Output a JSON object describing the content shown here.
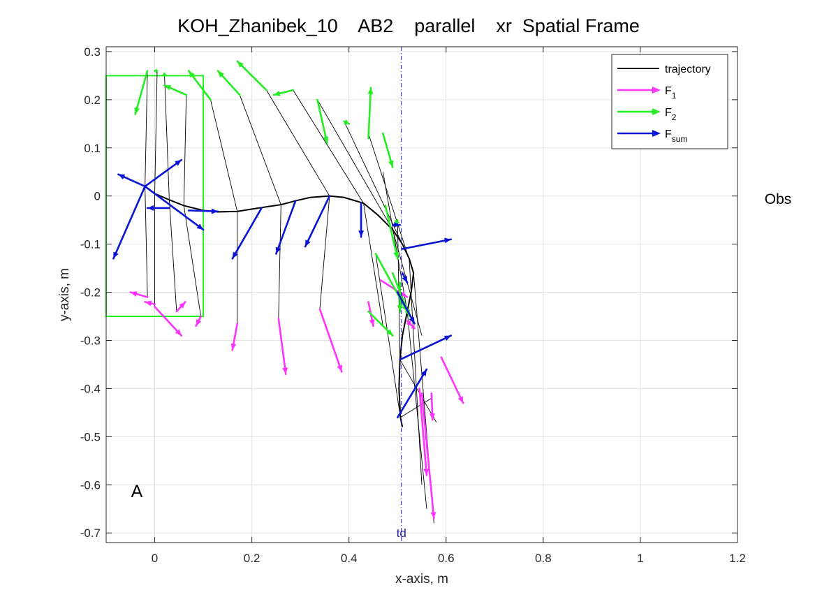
{
  "chart_data": {
    "type": "line",
    "title": "KOH_Zhanibek_10    AB2    parallel    xr  Spatial Frame",
    "xlabel": "x-axis, m",
    "ylabel": "y-axis, m",
    "xlim": [
      -0.1,
      1.2
    ],
    "ylim": [
      -0.72,
      0.31
    ],
    "xticks": [
      0,
      0.2,
      0.4,
      0.6,
      0.8,
      1,
      1.2
    ],
    "xtick_labels": [
      "0",
      "0.2",
      "0.4",
      "0.6",
      "0.8",
      "1",
      "1.2"
    ],
    "yticks": [
      0.3,
      0.2,
      0.1,
      0,
      -0.1,
      -0.2,
      -0.3,
      -0.4,
      -0.5,
      -0.6,
      -0.7
    ],
    "ytick_labels": [
      "0.3",
      "0.2",
      "0.1",
      "0",
      "-0.1",
      "-0.2",
      "-0.3",
      "-0.4",
      "-0.5",
      "-0.6",
      "-0.7"
    ],
    "grid": true,
    "legend_position": "top-right",
    "legend": [
      {
        "label": "trajectory",
        "sub": "",
        "color": "#000000",
        "style": "line"
      },
      {
        "label": "F",
        "sub": "1",
        "color": "#ff33ff",
        "style": "arrow"
      },
      {
        "label": "F",
        "sub": "2",
        "color": "#22ee22",
        "style": "arrow"
      },
      {
        "label": "F",
        "sub": "sum",
        "color": "#0a14d6",
        "style": "arrow"
      }
    ],
    "colors": {
      "trajectory": "#000000",
      "f1": "#ff33ff",
      "f2": "#22ee22",
      "fsum": "#0a14d6",
      "box": "#22ee22",
      "td": "#1a1aa8"
    },
    "box": {
      "x": [
        -0.1,
        0.1
      ],
      "y": [
        -0.25,
        0.25
      ]
    },
    "td_line": {
      "x": 0.508,
      "label": "td"
    },
    "annotations": {
      "corner": "A",
      "side": "Obs"
    },
    "trajectory": [
      [
        -0.02,
        0.02
      ],
      [
        0.0,
        0.005
      ],
      [
        0.03,
        -0.008
      ],
      [
        0.06,
        -0.02
      ],
      [
        0.1,
        -0.03
      ],
      [
        0.13,
        -0.033
      ],
      [
        0.17,
        -0.032
      ],
      [
        0.22,
        -0.024
      ],
      [
        0.26,
        -0.018
      ],
      [
        0.29,
        -0.01
      ],
      [
        0.32,
        -0.003
      ],
      [
        0.36,
        0.0
      ],
      [
        0.39,
        -0.003
      ],
      [
        0.43,
        -0.015
      ],
      [
        0.46,
        -0.04
      ],
      [
        0.49,
        -0.07
      ],
      [
        0.51,
        -0.1
      ],
      [
        0.524,
        -0.13
      ],
      [
        0.533,
        -0.16
      ],
      [
        0.528,
        -0.2
      ],
      [
        0.52,
        -0.24
      ],
      [
        0.51,
        -0.29
      ],
      [
        0.505,
        -0.34
      ],
      [
        0.503,
        -0.4
      ],
      [
        0.506,
        -0.46
      ],
      [
        0.51,
        -0.48
      ]
    ],
    "links": [
      {
        "p": [
          -0.02,
          0.02
        ],
        "a": [
          -0.015,
          0.26
        ],
        "b": [
          -0.015,
          -0.21
        ]
      },
      {
        "p": [
          0.0,
          0.005
        ],
        "a": [
          0.005,
          0.26
        ],
        "b": [
          0.0,
          -0.23
        ]
      },
      {
        "p": [
          0.03,
          -0.008
        ],
        "a": [
          0.02,
          0.255
        ],
        "b": [
          0.045,
          -0.24
        ]
      },
      {
        "p": [
          0.06,
          -0.02
        ],
        "a": [
          0.065,
          0.21
        ],
        "b": [
          0.095,
          -0.25
        ]
      },
      {
        "p": [
          0.17,
          -0.032
        ],
        "a": [
          0.115,
          0.2
        ],
        "b": [
          0.17,
          -0.265
        ]
      },
      {
        "p": [
          0.26,
          -0.018
        ],
        "a": [
          0.175,
          0.21
        ],
        "b": [
          0.255,
          -0.255
        ]
      },
      {
        "p": [
          0.36,
          0.0
        ],
        "a": [
          0.23,
          0.22
        ],
        "b": [
          0.34,
          -0.235
        ]
      },
      {
        "p": [
          0.43,
          -0.015
        ],
        "a": [
          0.285,
          0.22
        ],
        "b": [
          0.47,
          -0.27
        ]
      },
      {
        "p": [
          0.49,
          -0.07
        ],
        "a": [
          0.335,
          0.2
        ],
        "b": [
          0.55,
          -0.29
        ]
      },
      {
        "p": [
          0.524,
          -0.13
        ],
        "a": [
          0.39,
          0.155
        ],
        "b": [
          0.55,
          -0.6
        ]
      },
      {
        "p": [
          0.533,
          -0.16
        ],
        "a": [
          0.44,
          0.13
        ],
        "b": [
          0.575,
          -0.68
        ]
      },
      {
        "p": [
          0.52,
          -0.24
        ],
        "a": [
          0.47,
          0.05
        ],
        "b": [
          0.56,
          -0.65
        ]
      },
      {
        "p": [
          0.505,
          -0.34
        ],
        "a": [
          0.5,
          -0.05
        ],
        "b": [
          0.58,
          -0.47
        ]
      },
      {
        "p": [
          0.506,
          -0.46
        ],
        "a": [
          0.455,
          -0.12
        ],
        "b": [
          0.57,
          -0.42
        ]
      }
    ],
    "f1_arrows": [
      [
        -0.015,
        -0.21,
        -0.05,
        -0.2
      ],
      [
        0.0,
        -0.225,
        -0.02,
        -0.22
      ],
      [
        0.0,
        -0.23,
        0.055,
        -0.29
      ],
      [
        0.045,
        -0.24,
        0.063,
        -0.22
      ],
      [
        0.095,
        -0.25,
        0.085,
        -0.27
      ],
      [
        0.17,
        -0.265,
        0.16,
        -0.32
      ],
      [
        0.255,
        -0.255,
        0.27,
        -0.37
      ],
      [
        0.34,
        -0.235,
        0.385,
        -0.365
      ],
      [
        0.44,
        -0.22,
        0.45,
        -0.27
      ],
      [
        0.465,
        -0.175,
        0.52,
        -0.21
      ],
      [
        0.52,
        -0.26,
        0.53,
        -0.27
      ],
      [
        0.59,
        -0.335,
        0.635,
        -0.43
      ],
      [
        0.57,
        -0.41,
        0.572,
        -0.465
      ],
      [
        0.545,
        -0.4,
        0.56,
        -0.58
      ],
      [
        0.55,
        -0.41,
        0.575,
        -0.67
      ],
      [
        0.53,
        -0.27,
        0.535,
        -0.275
      ]
    ],
    "f2_arrows": [
      [
        -0.015,
        0.26,
        -0.04,
        0.17
      ],
      [
        0.005,
        0.26,
        -0.0,
        0.26
      ],
      [
        0.02,
        0.25,
        0.02,
        0.255
      ],
      [
        0.065,
        0.21,
        0.02,
        0.23
      ],
      [
        0.115,
        0.2,
        0.07,
        0.26
      ],
      [
        0.175,
        0.21,
        0.13,
        0.26
      ],
      [
        0.23,
        0.22,
        0.17,
        0.28
      ],
      [
        0.285,
        0.22,
        0.245,
        0.21
      ],
      [
        0.335,
        0.2,
        0.355,
        0.11
      ],
      [
        0.39,
        0.155,
        0.4,
        0.15
      ],
      [
        0.44,
        0.12,
        0.445,
        0.225
      ],
      [
        0.47,
        0.13,
        0.49,
        0.06
      ],
      [
        0.475,
        -0.02,
        0.5,
        -0.13
      ],
      [
        0.455,
        -0.12,
        0.52,
        -0.24
      ],
      [
        0.49,
        -0.16,
        0.525,
        -0.25
      ],
      [
        0.44,
        -0.24,
        0.49,
        -0.29
      ],
      [
        0.5,
        -0.05,
        0.495,
        -0.06
      ],
      [
        0.505,
        -0.18,
        0.505,
        -0.24
      ]
    ],
    "fsum_arrows": [
      [
        -0.02,
        0.02,
        -0.075,
        0.045
      ],
      [
        -0.02,
        0.02,
        -0.085,
        -0.13
      ],
      [
        -0.02,
        0.02,
        0.055,
        0.075
      ],
      [
        -0.02,
        0.02,
        0.1,
        -0.07
      ],
      [
        0.03,
        -0.025,
        -0.015,
        -0.025
      ],
      [
        0.07,
        -0.03,
        0.13,
        -0.032
      ],
      [
        0.22,
        -0.025,
        0.16,
        -0.13
      ],
      [
        0.29,
        -0.01,
        0.25,
        -0.12
      ],
      [
        0.36,
        0.0,
        0.31,
        -0.105
      ],
      [
        0.425,
        -0.015,
        0.425,
        -0.085
      ],
      [
        0.51,
        -0.11,
        0.61,
        -0.09
      ],
      [
        0.51,
        -0.16,
        0.52,
        -0.18
      ],
      [
        0.505,
        -0.34,
        0.61,
        -0.29
      ],
      [
        0.5,
        -0.46,
        0.56,
        -0.36
      ],
      [
        0.5,
        -0.2,
        0.535,
        -0.265
      ],
      [
        0.49,
        -0.06,
        0.505,
        -0.06
      ]
    ]
  }
}
